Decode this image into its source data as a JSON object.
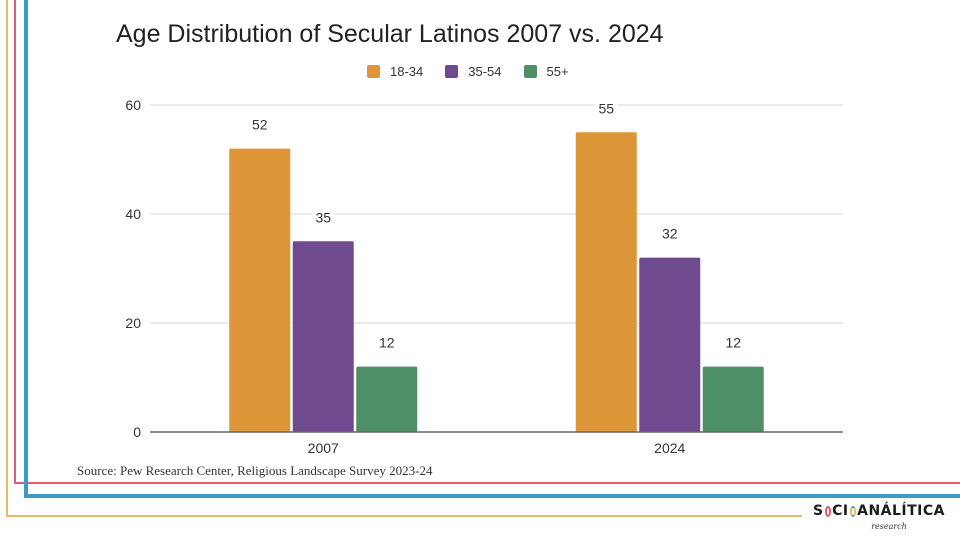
{
  "chart_data": {
    "type": "bar",
    "title": "Age Distribution of Secular Latinos 2007 vs. 2024",
    "categories": [
      "2007",
      "2024"
    ],
    "series": [
      {
        "name": "18-34",
        "color": "#dd9637",
        "values": [
          52,
          55
        ]
      },
      {
        "name": "35-54",
        "color": "#704a8f",
        "values": [
          35,
          32
        ]
      },
      {
        "name": "55+",
        "color": "#4f8f68",
        "values": [
          12,
          12
        ]
      }
    ],
    "xlabel": "",
    "ylabel": "",
    "ylim": [
      0,
      60
    ],
    "yticks": [
      0,
      20,
      40,
      60
    ],
    "grid": true,
    "legend": "top-center",
    "data_labels": true
  },
  "footer": {
    "source": "Source: Pew Research Center, Religious Landscape Survey 2023-24"
  },
  "logo": {
    "part1": "S",
    "part2": "CI",
    "part3": "ANÁLÍTICA",
    "sub": "research"
  },
  "colors": {
    "frame_yellow": "#e2bd62",
    "frame_red": "#df5a72",
    "frame_blue": "#3a9cc0"
  }
}
